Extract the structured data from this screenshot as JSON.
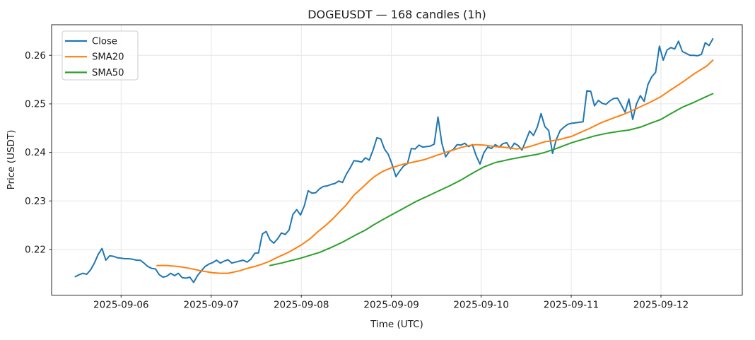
{
  "chart_data": {
    "type": "line",
    "title": "DOGEUSDT — 168 candles (1h)",
    "xlabel": "Time (UTC)",
    "ylabel": "Price (USDT)",
    "grid": true,
    "legend_position": "upper-left",
    "x_unit": "hour index of 1h candle (0..167)",
    "xlim_hours": [
      -6.2,
      174.7
    ],
    "ylim": [
      0.2106,
      0.2663
    ],
    "y_ticks": [
      0.22,
      0.23,
      0.24,
      0.25,
      0.26
    ],
    "x_ticks": [
      {
        "hour": 12.0,
        "label": "2025-09-06"
      },
      {
        "hour": 35.6,
        "label": "2025-09-07"
      },
      {
        "hour": 59.2,
        "label": "2025-09-08"
      },
      {
        "hour": 82.8,
        "label": "2025-09-09"
      },
      {
        "hour": 106.3,
        "label": "2025-09-10"
      },
      {
        "hour": 129.9,
        "label": "2025-09-11"
      },
      {
        "hour": 153.4,
        "label": "2025-09-12"
      }
    ],
    "series": [
      {
        "name": "Close",
        "color": "#1f77b4",
        "x_of_values": "index",
        "values": [
          0.2144,
          0.2148,
          0.2151,
          0.2149,
          0.2158,
          0.2172,
          0.219,
          0.2202,
          0.2178,
          0.2187,
          0.2186,
          0.2183,
          0.2182,
          0.2181,
          0.2181,
          0.218,
          0.2178,
          0.2178,
          0.2172,
          0.2165,
          0.2161,
          0.216,
          0.2148,
          0.2143,
          0.2145,
          0.2151,
          0.2146,
          0.2151,
          0.2142,
          0.2141,
          0.2143,
          0.2132,
          0.2146,
          0.2156,
          0.2165,
          0.217,
          0.2173,
          0.2178,
          0.2172,
          0.2176,
          0.2179,
          0.2172,
          0.2174,
          0.2176,
          0.2178,
          0.2174,
          0.218,
          0.2192,
          0.2193,
          0.2232,
          0.2237,
          0.222,
          0.2213,
          0.2222,
          0.2234,
          0.2231,
          0.224,
          0.2272,
          0.2282,
          0.2271,
          0.229,
          0.2321,
          0.2316,
          0.2317,
          0.2325,
          0.233,
          0.2331,
          0.2334,
          0.2336,
          0.2341,
          0.2338,
          0.2355,
          0.2368,
          0.2383,
          0.2382,
          0.238,
          0.2389,
          0.2384,
          0.2405,
          0.243,
          0.2428,
          0.2407,
          0.2396,
          0.2375,
          0.235,
          0.2362,
          0.2372,
          0.2377,
          0.2408,
          0.2407,
          0.2415,
          0.2411,
          0.2412,
          0.2413,
          0.2417,
          0.2473,
          0.2419,
          0.2391,
          0.2402,
          0.2406,
          0.2416,
          0.2415,
          0.2419,
          0.2412,
          0.2416,
          0.2393,
          0.2376,
          0.2399,
          0.2411,
          0.2408,
          0.2416,
          0.2411,
          0.2418,
          0.242,
          0.2407,
          0.2419,
          0.2414,
          0.2405,
          0.2424,
          0.2444,
          0.2435,
          0.2452,
          0.248,
          0.2453,
          0.2445,
          0.2398,
          0.2427,
          0.2445,
          0.2452,
          0.2458,
          0.246,
          0.2461,
          0.2462,
          0.2463,
          0.2527,
          0.2526,
          0.2496,
          0.2507,
          0.2501,
          0.2499,
          0.2506,
          0.2511,
          0.2512,
          0.2498,
          0.2483,
          0.251,
          0.2468,
          0.25,
          0.2517,
          0.2505,
          0.254,
          0.2556,
          0.2565,
          0.2619,
          0.259,
          0.2611,
          0.2616,
          0.2613,
          0.2629,
          0.2608,
          0.2604,
          0.26,
          0.26,
          0.2599,
          0.2602,
          0.2626,
          0.262,
          0.2634
        ]
      },
      {
        "name": "SMA20",
        "color": "#ff7f0e",
        "points": [
          [
            21.4,
            0.2167
          ],
          [
            24,
            0.2167
          ],
          [
            27,
            0.2165
          ],
          [
            30,
            0.2161
          ],
          [
            33,
            0.2156
          ],
          [
            36,
            0.2152
          ],
          [
            38,
            0.2151
          ],
          [
            40,
            0.2151
          ],
          [
            43,
            0.2156
          ],
          [
            45,
            0.2161
          ],
          [
            47,
            0.2165
          ],
          [
            49,
            0.217
          ],
          [
            51,
            0.2176
          ],
          [
            53,
            0.2184
          ],
          [
            55,
            0.2191
          ],
          [
            56.5,
            0.2197
          ],
          [
            59.3,
            0.221
          ],
          [
            61.5,
            0.2222
          ],
          [
            63.6,
            0.2237
          ],
          [
            65.5,
            0.2249
          ],
          [
            67.3,
            0.2262
          ],
          [
            69,
            0.2276
          ],
          [
            71,
            0.2292
          ],
          [
            73,
            0.2312
          ],
          [
            75,
            0.2326
          ],
          [
            77,
            0.2341
          ],
          [
            78.5,
            0.2351
          ],
          [
            80.3,
            0.236
          ],
          [
            82.7,
            0.2368
          ],
          [
            86,
            0.2376
          ],
          [
            88,
            0.2379
          ],
          [
            91.4,
            0.2385
          ],
          [
            94.3,
            0.2393
          ],
          [
            97,
            0.24
          ],
          [
            99,
            0.2405
          ],
          [
            101,
            0.241
          ],
          [
            103,
            0.2414
          ],
          [
            105,
            0.2416
          ],
          [
            107,
            0.2415
          ],
          [
            110,
            0.2412
          ],
          [
            112,
            0.2411
          ],
          [
            114,
            0.2409
          ],
          [
            115.5,
            0.2407
          ],
          [
            117.5,
            0.2409
          ],
          [
            119,
            0.2412
          ],
          [
            121,
            0.2417
          ],
          [
            123,
            0.2422
          ],
          [
            125,
            0.2424
          ],
          [
            127,
            0.2427
          ],
          [
            130,
            0.2433
          ],
          [
            132,
            0.244
          ],
          [
            134.6,
            0.2449
          ],
          [
            137.7,
            0.2461
          ],
          [
            141,
            0.2471
          ],
          [
            143.5,
            0.2478
          ],
          [
            145,
            0.2483
          ],
          [
            148,
            0.2494
          ],
          [
            151,
            0.2505
          ],
          [
            153.4,
            0.2515
          ],
          [
            156,
            0.2529
          ],
          [
            159.3,
            0.2546
          ],
          [
            162.3,
            0.2563
          ],
          [
            165.4,
            0.2578
          ],
          [
            167,
            0.259
          ]
        ]
      },
      {
        "name": "SMA50",
        "color": "#2ca02c",
        "points": [
          [
            51,
            0.2167
          ],
          [
            54,
            0.2172
          ],
          [
            56,
            0.2176
          ],
          [
            59,
            0.2182
          ],
          [
            61.5,
            0.2188
          ],
          [
            64,
            0.2194
          ],
          [
            67,
            0.2204
          ],
          [
            70,
            0.2215
          ],
          [
            73,
            0.2228
          ],
          [
            76,
            0.224
          ],
          [
            78,
            0.225
          ],
          [
            80,
            0.2259
          ],
          [
            83,
            0.2272
          ],
          [
            86,
            0.2285
          ],
          [
            89,
            0.2298
          ],
          [
            92,
            0.2309
          ],
          [
            95,
            0.232
          ],
          [
            98,
            0.2331
          ],
          [
            101,
            0.2343
          ],
          [
            104,
            0.2357
          ],
          [
            107,
            0.237
          ],
          [
            110,
            0.2379
          ],
          [
            114,
            0.2386
          ],
          [
            118,
            0.2392
          ],
          [
            121,
            0.2396
          ],
          [
            123,
            0.24
          ],
          [
            126,
            0.2408
          ],
          [
            130,
            0.242
          ],
          [
            133,
            0.2427
          ],
          [
            136,
            0.2434
          ],
          [
            139,
            0.2439
          ],
          [
            142,
            0.2443
          ],
          [
            145,
            0.2446
          ],
          [
            148,
            0.2452
          ],
          [
            151,
            0.2461
          ],
          [
            153.4,
            0.2468
          ],
          [
            156,
            0.248
          ],
          [
            159,
            0.2493
          ],
          [
            162,
            0.2503
          ],
          [
            165,
            0.2514
          ],
          [
            167,
            0.2521
          ]
        ]
      }
    ]
  }
}
